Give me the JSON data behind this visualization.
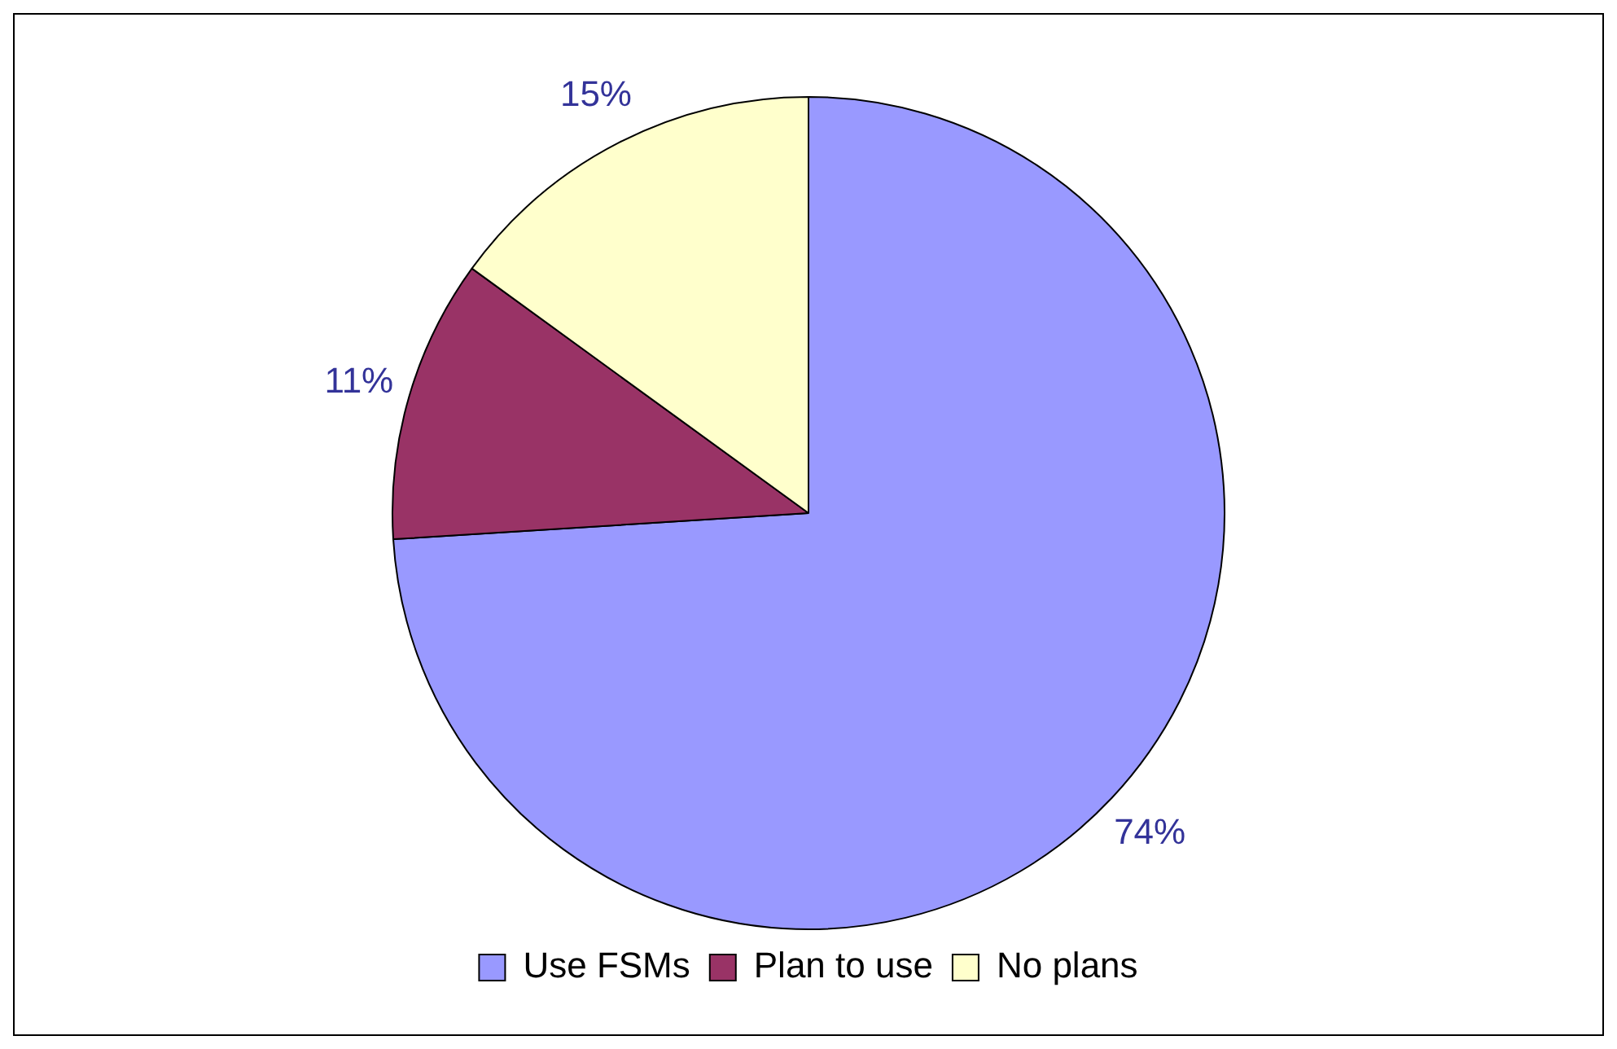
{
  "chart_data": {
    "type": "pie",
    "categories": [
      "Use FSMs",
      "Plan to use",
      "No plans"
    ],
    "values": [
      74,
      11,
      15
    ],
    "colors": [
      "#9999ff",
      "#993366",
      "#ffffcc"
    ],
    "value_labels": [
      "74%",
      "11%",
      "15%"
    ],
    "legend": "bottom"
  }
}
